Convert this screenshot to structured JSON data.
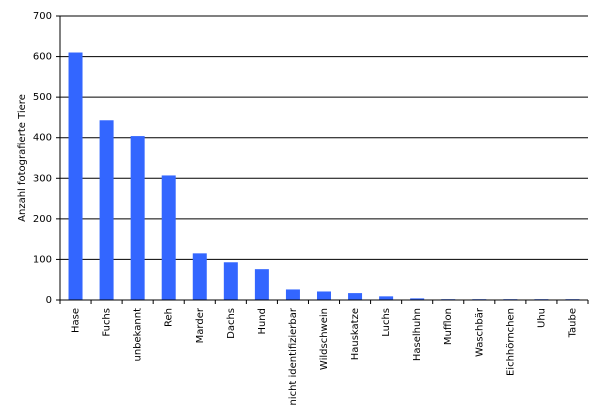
{
  "chart_data": {
    "type": "bar",
    "ylabel": "Anzahl fotografierte Tiere",
    "categories": [
      "Hase",
      "Fuchs",
      "unbekannt",
      "Reh",
      "Marder",
      "Dachs",
      "Hund",
      "nicht identifizierbar",
      "Wildschwein",
      "Hauskatze",
      "Luchs",
      "Haselhuhn",
      "Mufflon",
      "Waschbär",
      "Eichhörnchen",
      "Uhu",
      "Taube"
    ],
    "values": [
      610,
      443,
      404,
      307,
      115,
      93,
      76,
      26,
      21,
      17,
      9,
      4,
      2,
      2,
      2,
      2,
      2
    ],
    "color": "#3366ff",
    "ylim": [
      0,
      700
    ],
    "yticks": [
      0,
      100,
      200,
      300,
      400,
      500,
      600,
      700
    ],
    "grid": true
  }
}
